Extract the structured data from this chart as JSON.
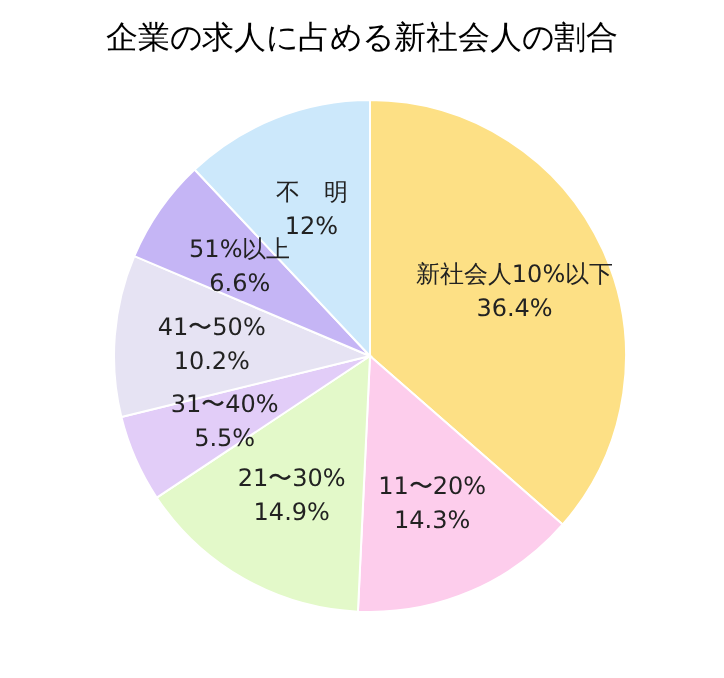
{
  "chart_data": {
    "type": "pie",
    "title": "企業の求人に占める新社会人の割合",
    "categories": [
      "新社会人10%以下",
      "11〜20%",
      "21〜30%",
      "31〜40%",
      "41〜50%",
      "51%以上",
      "不　明"
    ],
    "values": [
      36.4,
      14.3,
      14.9,
      5.5,
      10.2,
      6.6,
      12
    ],
    "value_labels": [
      "36.4%",
      "14.3%",
      "14.9%",
      "5.5%",
      "10.2%",
      "6.6%",
      "12%"
    ],
    "colors": [
      "#fde085",
      "#fdcdec",
      "#e3f9c9",
      "#e2cdf8",
      "#e6e3f3",
      "#c5b5f5",
      "#cce8fb"
    ]
  }
}
